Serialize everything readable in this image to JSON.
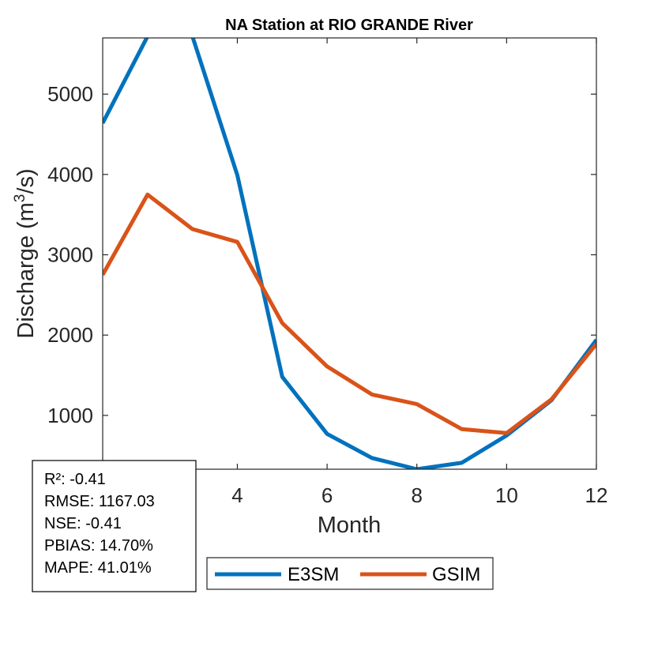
{
  "chart_data": {
    "type": "line",
    "title": "NA  Station at  RIO GRANDE  River",
    "xlabel": "Month",
    "ylabel_main": "Discharge (m",
    "ylabel_sup": "3",
    "ylabel_tail": "/s)",
    "xlim": [
      1,
      12
    ],
    "ylim": [
      330,
      5700
    ],
    "xticks": [
      4,
      6,
      8,
      10,
      12
    ],
    "yticks": [
      1000,
      2000,
      3000,
      4000,
      5000
    ],
    "x": [
      1,
      2,
      3,
      4,
      5,
      6,
      7,
      8,
      9,
      10,
      11,
      12
    ],
    "series": [
      {
        "name": "E3SM",
        "color": "#0072BD",
        "values": [
          4640,
          5720,
          5720,
          3990,
          1480,
          770,
          470,
          330,
          410,
          750,
          1190,
          1940
        ]
      },
      {
        "name": "GSIM",
        "color": "#D95319",
        "values": [
          2750,
          3750,
          3320,
          3160,
          2150,
          1610,
          1260,
          1140,
          830,
          780,
          1200,
          1890
        ]
      }
    ],
    "legend_position": "bottom"
  },
  "stats": [
    "R²: -0.41",
    "RMSE: 1167.03",
    "NSE: -0.41",
    "PBIAS: 14.70%",
    "MAPE: 41.01%"
  ]
}
